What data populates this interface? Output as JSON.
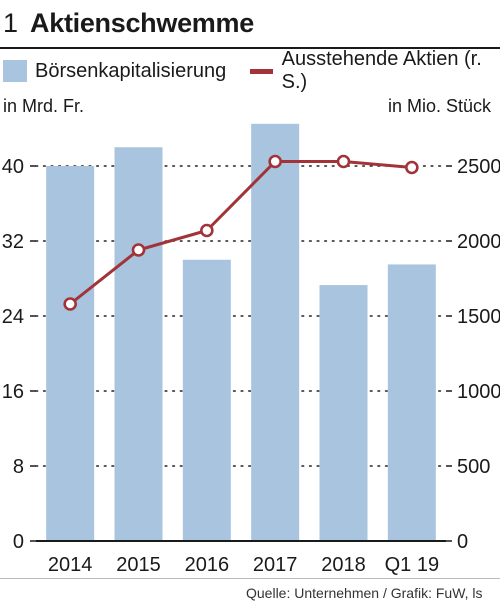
{
  "header": {
    "number": "1",
    "title": "Aktienschwemme"
  },
  "units": {
    "left": "in Mrd. Fr.",
    "right": "in Mio. Stück"
  },
  "source": "Quelle: Unternehmen / Grafik: FuW, ls",
  "colors": {
    "bar": "#a9c4de",
    "line": "#a23338",
    "text": "#1a1a1a"
  },
  "chart_data": {
    "type": "bar",
    "categories": [
      "2014",
      "2015",
      "2016",
      "2017",
      "2018",
      "Q1 19"
    ],
    "series": [
      {
        "name": "Börsenkapitalisierung",
        "type": "bar",
        "axis": "left",
        "values": [
          40.0,
          42.0,
          30.0,
          44.5,
          27.3,
          29.5
        ]
      },
      {
        "name": "Ausstehende Aktien (r. S.)",
        "type": "line",
        "axis": "right",
        "values": [
          1580,
          1940,
          2070,
          2530,
          2530,
          2490
        ]
      }
    ],
    "y_left": {
      "ylim": [
        0,
        48
      ],
      "ticks": [
        "0",
        "8",
        "16",
        "24",
        "32",
        "40"
      ],
      "tick_values": [
        0,
        8,
        16,
        24,
        32,
        40
      ]
    },
    "y_right": {
      "ylim": [
        0,
        3000
      ],
      "ticks": [
        "0",
        "500",
        "1000",
        "1500",
        "2000",
        "2500"
      ],
      "tick_values": [
        0,
        500,
        1000,
        1500,
        2000,
        2500
      ]
    },
    "gridlines": "dotted",
    "legend_position": "top"
  }
}
